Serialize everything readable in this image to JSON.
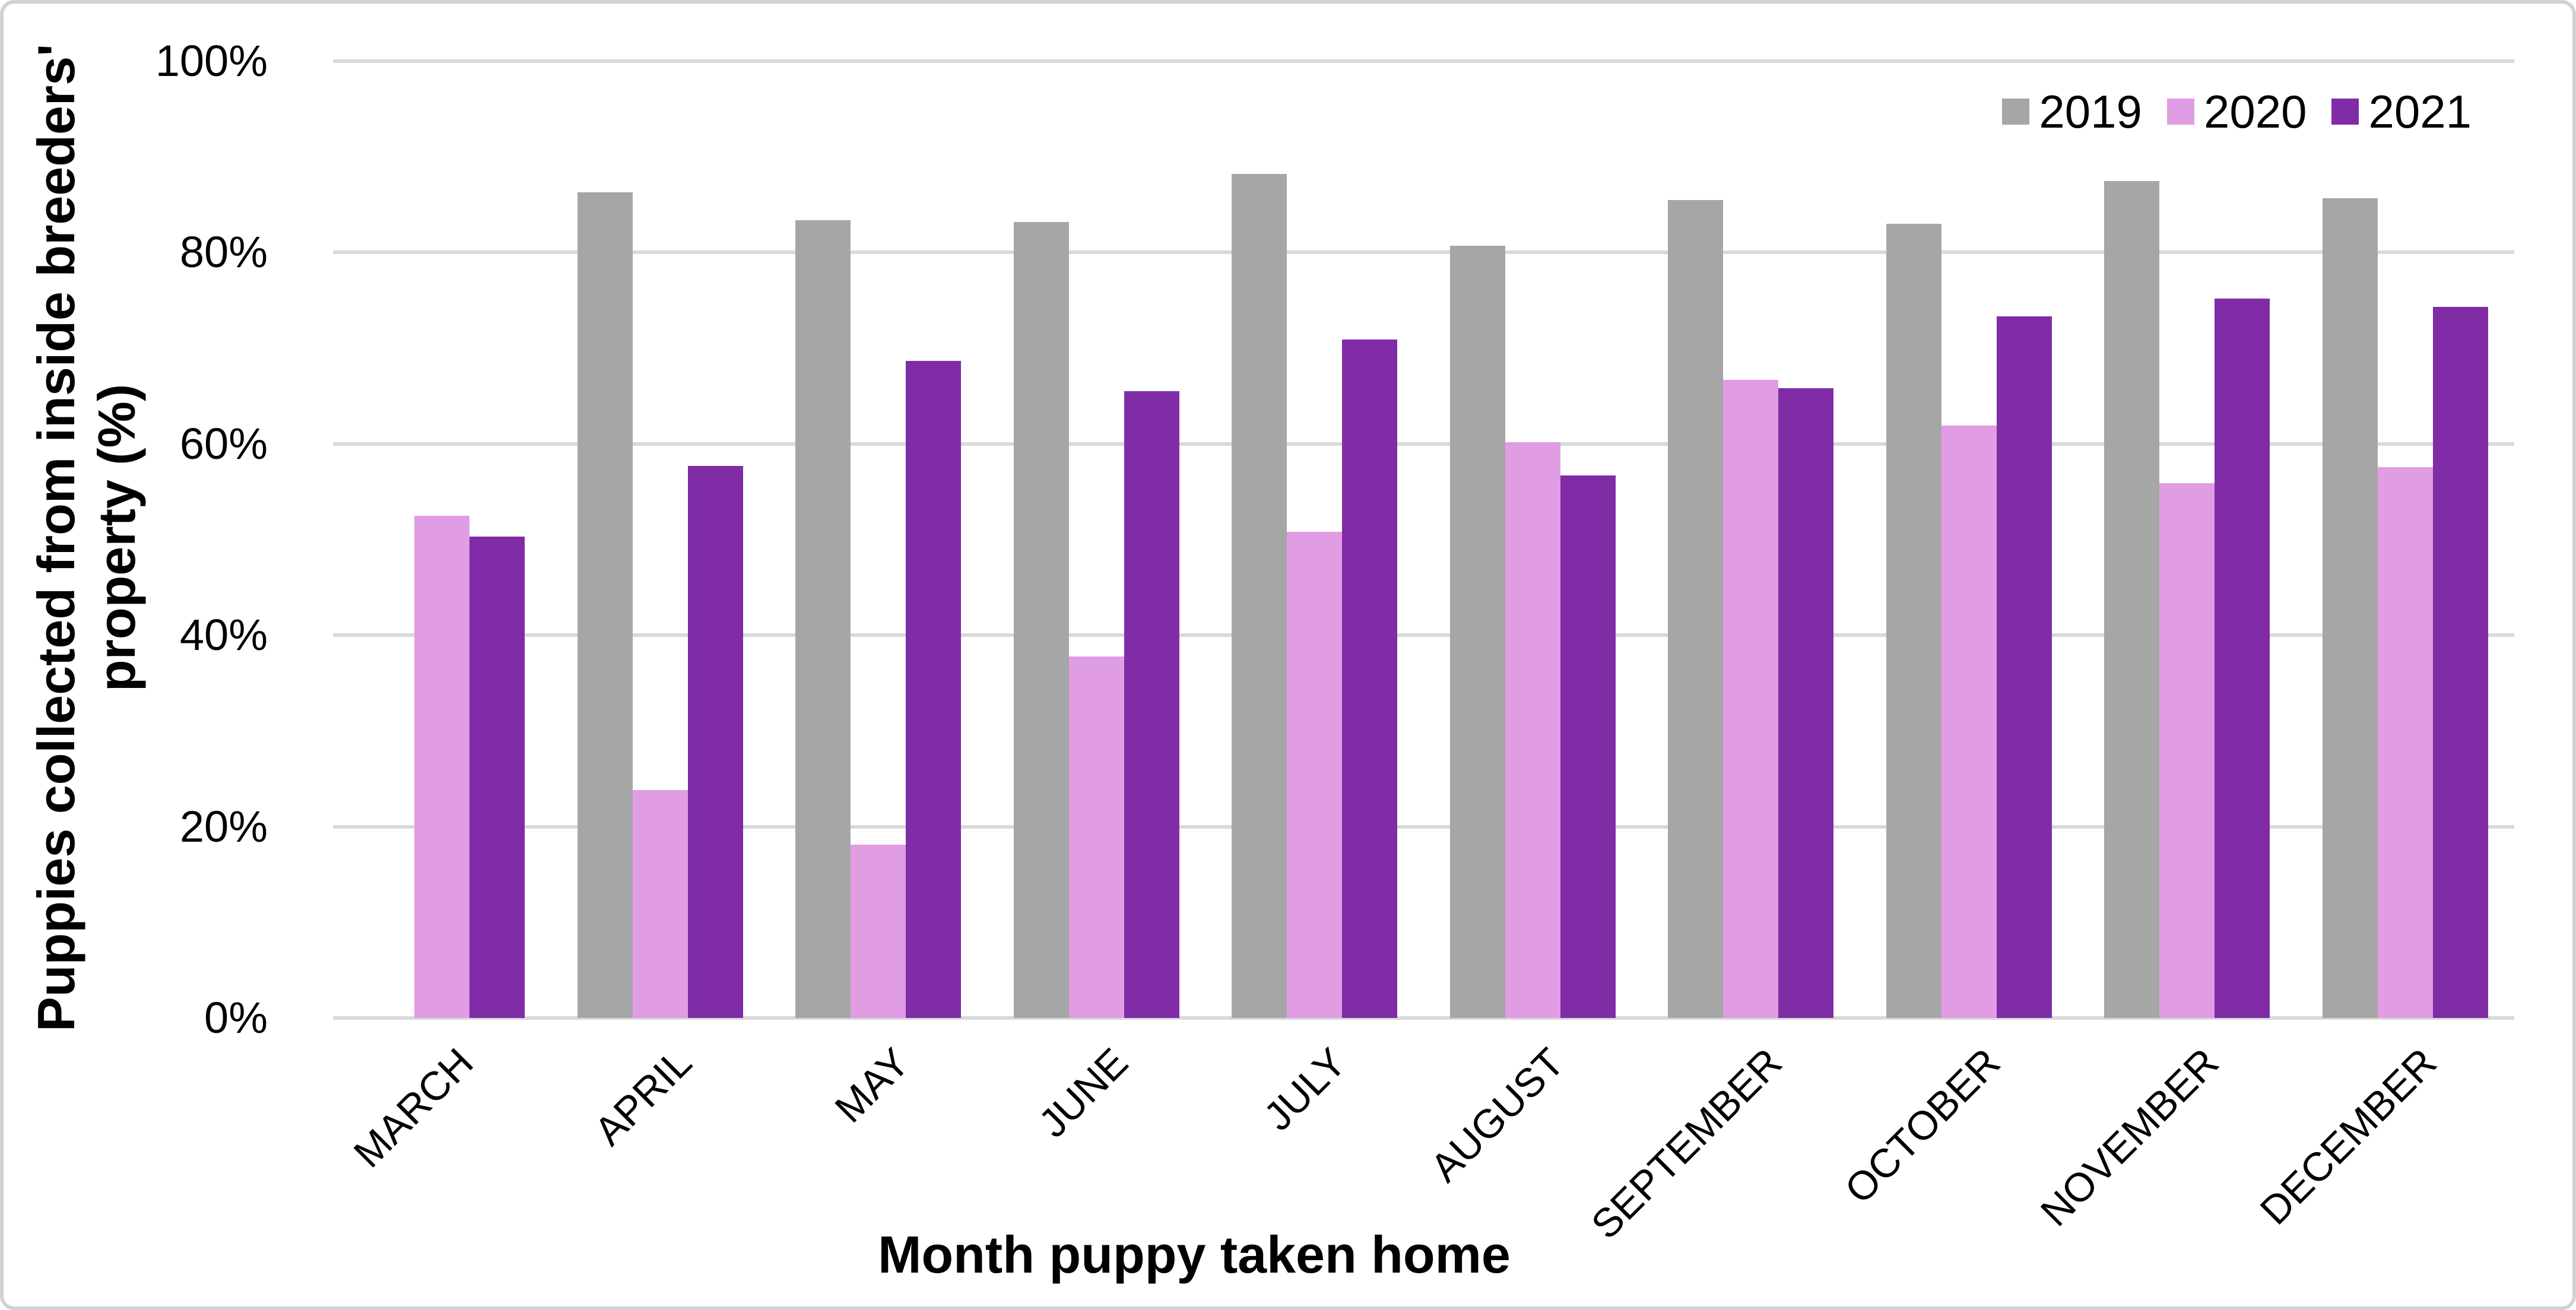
{
  "chart_data": {
    "type": "bar",
    "title": "",
    "xlabel": "Month puppy taken home",
    "ylabel": "Puppies collected from inside breeders' property (%)",
    "ylabel_lines": [
      "Puppies collected from inside breeders'",
      "property (%)"
    ],
    "categories": [
      "MARCH",
      "APRIL",
      "MAY",
      "JUNE",
      "JULY",
      "AUGUST",
      "SEPTEMBER",
      "OCTOBER",
      "NOVEMBER",
      "DECEMBER"
    ],
    "series": [
      {
        "name": "2019",
        "color": "#a6a6a6",
        "values": [
          null,
          86.3,
          83.4,
          83.2,
          88.2,
          80.7,
          85.5,
          83.0,
          87.5,
          85.7
        ]
      },
      {
        "name": "2020",
        "color": "#e09de3",
        "values": [
          52.5,
          23.8,
          18.1,
          37.8,
          50.8,
          60.2,
          66.7,
          61.9,
          55.9,
          57.6
        ]
      },
      {
        "name": "2021",
        "color": "#7f2ca6",
        "values": [
          50.3,
          57.7,
          68.7,
          65.5,
          70.9,
          56.7,
          65.8,
          73.3,
          75.2,
          74.3
        ]
      }
    ],
    "ylim": [
      0,
      100
    ],
    "yticks": [
      {
        "value": 0,
        "label": "0%"
      },
      {
        "value": 20,
        "label": "20%"
      },
      {
        "value": 40,
        "label": "40%"
      },
      {
        "value": 60,
        "label": "60%"
      },
      {
        "value": 80,
        "label": "80%"
      },
      {
        "value": 100,
        "label": "100%"
      }
    ],
    "grid": true,
    "legend_position": "top-right"
  },
  "colors": {
    "gridline": "#d9d9d9",
    "border": "#d2d2d2",
    "text": "#000000",
    "background": "#ffffff"
  }
}
